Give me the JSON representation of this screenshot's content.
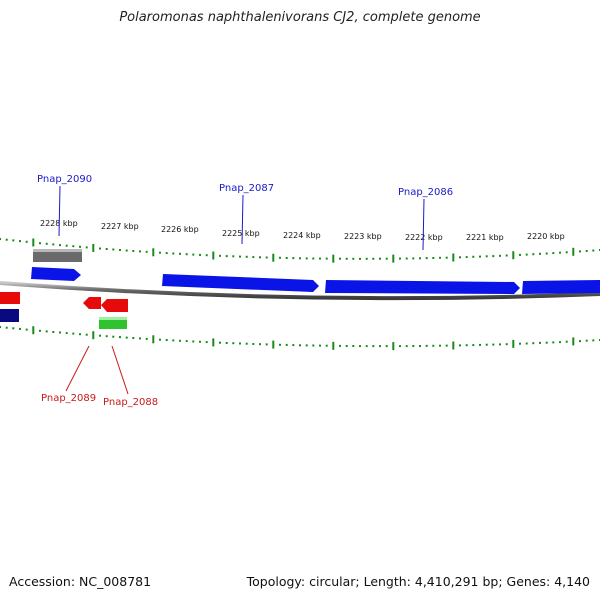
{
  "title": "Polaromonas naphthalenivorans CJ2, complete genome",
  "footer": {
    "accession": "Accession: NC_008781",
    "summary": "Topology: circular; Length: 4,410,291 bp; Genes: 4,140"
  },
  "scale_labels": [
    "2228 kbp",
    "2227 kbp",
    "2226 kbp",
    "2225 kbp",
    "2224 kbp",
    "2223 kbp",
    "2222 kbp",
    "2221 kbp",
    "2220 kbp"
  ],
  "gene_labels": {
    "pnap_2090": "Pnap_2090",
    "pnap_2087": "Pnap_2087",
    "pnap_2086": "Pnap_2086",
    "pnap_2089": "Pnap_2089",
    "pnap_2088": "Pnap_2088"
  },
  "colors": {
    "forward_gene": "#0a14e6",
    "reverse_gene": "#e60a0a",
    "rna_gene": "#2fc42f",
    "pseudo_gene": "#777777",
    "dark_gene": "#0a0a80",
    "tick": "#1a8a1a",
    "forward_label": "#1a1ac8",
    "reverse_label": "#c81a1a"
  }
}
